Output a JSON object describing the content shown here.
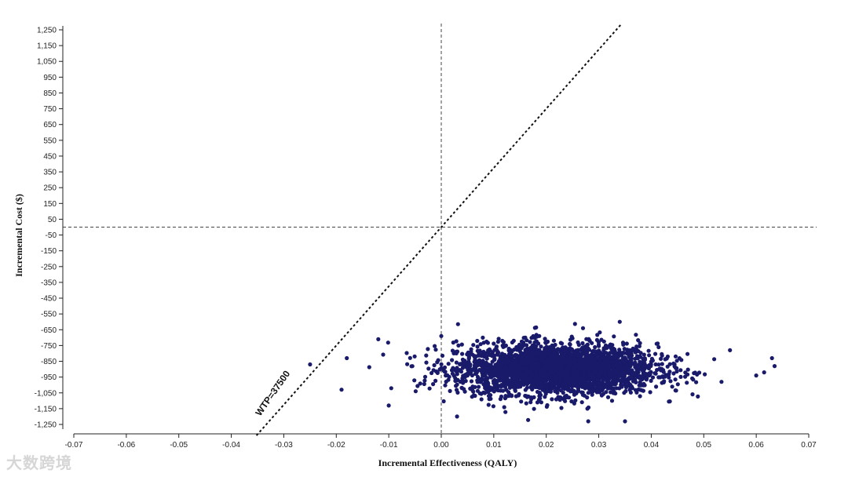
{
  "chart_data": {
    "type": "scatter",
    "xlabel": "Incremental Effectiveness (QALY)",
    "ylabel": "Incremental Cost ($)",
    "xlim": [
      -0.07,
      0.07
    ],
    "ylim": [
      -1300,
      1300
    ],
    "x_ticks": [
      -0.07,
      -0.06,
      -0.05,
      -0.04,
      -0.03,
      -0.02,
      -0.01,
      0.0,
      0.01,
      0.02,
      0.03,
      0.04,
      0.05,
      0.06,
      0.07
    ],
    "x_tick_labels": [
      "-0.07",
      "-0.06",
      "-0.05",
      "-0.04",
      "-0.03",
      "-0.02",
      "-0.01",
      "0.00",
      "0.01",
      "0.02",
      "0.03",
      "0.04",
      "0.05",
      "0.06",
      "0.07"
    ],
    "y_ticks": [
      1250,
      1150,
      1050,
      950,
      850,
      750,
      650,
      550,
      450,
      350,
      250,
      150,
      50,
      -50,
      -150,
      -250,
      -350,
      -450,
      -550,
      -650,
      -750,
      -850,
      -950,
      -1050,
      -1150,
      -1250
    ],
    "y_tick_labels": [
      "1,250",
      "1,150",
      "1,050",
      "950",
      "850",
      "750",
      "650",
      "550",
      "450",
      "350",
      "250",
      "150",
      "50",
      "-50",
      "-150",
      "-250",
      "-350",
      "-450",
      "-550",
      "-650",
      "-750",
      "-850",
      "-950",
      "-1,050",
      "-1,150",
      "-1,250"
    ],
    "reference_lines": {
      "x": 0,
      "y": 0,
      "style": "dashed"
    },
    "wtp_line": {
      "slope": 37500,
      "label": "WTP=37500",
      "style": "dotted"
    },
    "cloud": {
      "x_center": 0.022,
      "y_center": -900,
      "x_sd": 0.0095,
      "y_sd": 80,
      "count": 3000
    },
    "outliers": [
      {
        "x": -0.025,
        "y": -870
      },
      {
        "x": -0.019,
        "y": -1030
      },
      {
        "x": -0.018,
        "y": -830
      },
      {
        "x": -0.012,
        "y": -710
      },
      {
        "x": 0.034,
        "y": -600
      },
      {
        "x": 0.0615,
        "y": -920
      },
      {
        "x": 0.063,
        "y": -830
      },
      {
        "x": 0.0635,
        "y": -880
      },
      {
        "x": 0.06,
        "y": -940
      },
      {
        "x": 0.055,
        "y": -780
      },
      {
        "x": 0.027,
        "y": -640
      },
      {
        "x": 0.028,
        "y": -1230
      },
      {
        "x": 0.035,
        "y": -1230
      },
      {
        "x": 0.003,
        "y": -1200
      },
      {
        "x": 0.0,
        "y": -690
      },
      {
        "x": -0.01,
        "y": -1130
      }
    ],
    "grid": false,
    "legend": "none",
    "point_color": "#1a1a6b"
  },
  "watermark": "大数跨境"
}
